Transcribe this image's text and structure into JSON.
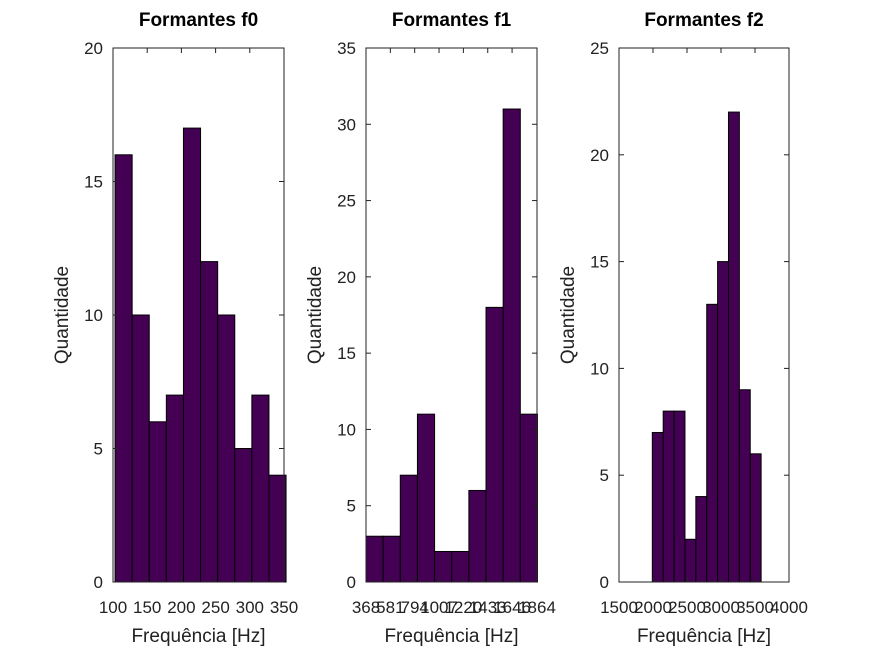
{
  "chart_data": [
    {
      "type": "bar",
      "title": "Formantes f0",
      "xlabel": "Frequência [Hz]",
      "ylabel": "Quantidade",
      "xlim": [
        100,
        350
      ],
      "ylim": [
        0,
        20
      ],
      "xticks": [
        "100",
        "150",
        "200",
        "250",
        "300",
        "350"
      ],
      "xtick_values": [
        100,
        150,
        200,
        250,
        300,
        350
      ],
      "yticks": [
        "0",
        "5",
        "10",
        "15",
        "20"
      ],
      "ytick_values": [
        0,
        5,
        10,
        15,
        20
      ],
      "bins": [
        [
          103,
          128
        ],
        [
          128,
          153
        ],
        [
          153,
          178
        ],
        [
          178,
          203
        ],
        [
          203,
          228
        ],
        [
          228,
          253
        ],
        [
          253,
          278
        ],
        [
          278,
          303
        ],
        [
          303,
          328
        ],
        [
          328,
          353
        ]
      ],
      "values": [
        16,
        10,
        6,
        7,
        17,
        12,
        10,
        5,
        7,
        4
      ],
      "color": "#440154"
    },
    {
      "type": "bar",
      "title": "Formantes f1",
      "xlabel": "Frequência [Hz]",
      "ylabel": "Quantidade",
      "xlim": [
        368,
        1864
      ],
      "ylim": [
        0,
        35
      ],
      "xticks": [
        "368",
        "581",
        "794",
        "1007",
        "1220",
        "1433",
        "1646",
        "1864"
      ],
      "xtick_values": [
        368,
        581,
        794,
        1007,
        1220,
        1433,
        1646,
        1864
      ],
      "yticks": [
        "0",
        "5",
        "10",
        "15",
        "20",
        "25",
        "30",
        "35"
      ],
      "ytick_values": [
        0,
        5,
        10,
        15,
        20,
        25,
        30,
        35
      ],
      "bins": [
        [
          368,
          518
        ],
        [
          518,
          668
        ],
        [
          668,
          818
        ],
        [
          818,
          968
        ],
        [
          968,
          1118
        ],
        [
          1118,
          1268
        ],
        [
          1268,
          1418
        ],
        [
          1418,
          1568
        ],
        [
          1568,
          1718
        ],
        [
          1718,
          1868
        ]
      ],
      "values": [
        3,
        3,
        7,
        11,
        2,
        2,
        6,
        18,
        31,
        11
      ],
      "color": "#440154"
    },
    {
      "type": "bar",
      "title": "Formantes f2",
      "xlabel": "Frequência [Hz]",
      "ylabel": "Quantidade",
      "xlim": [
        1500,
        4000
      ],
      "ylim": [
        0,
        25
      ],
      "xticks": [
        "1500",
        "2000",
        "2500",
        "3000",
        "3500",
        "4000"
      ],
      "xtick_values": [
        1500,
        2000,
        2500,
        3000,
        3500,
        4000
      ],
      "yticks": [
        "0",
        "5",
        "10",
        "15",
        "20",
        "25"
      ],
      "ytick_values": [
        0,
        5,
        10,
        15,
        20,
        25
      ],
      "bins": [
        [
          1990,
          2150
        ],
        [
          2150,
          2310
        ],
        [
          2310,
          2470
        ],
        [
          2470,
          2630
        ],
        [
          2630,
          2790
        ],
        [
          2790,
          2950
        ],
        [
          2950,
          3110
        ],
        [
          3110,
          3270
        ],
        [
          3270,
          3430
        ],
        [
          3430,
          3590
        ]
      ],
      "values": [
        7,
        8,
        8,
        2,
        4,
        13,
        15,
        22,
        9,
        6
      ],
      "color": "#440154"
    }
  ]
}
